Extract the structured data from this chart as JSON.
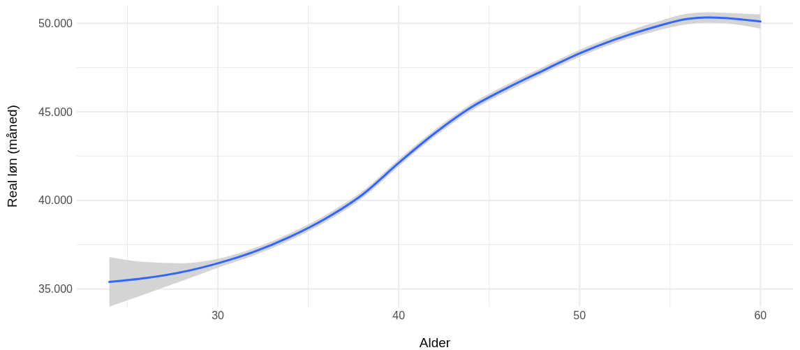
{
  "chart_data": {
    "type": "line",
    "xlabel": "Alder",
    "ylabel": "Real løn (måned)",
    "xlim": [
      22.2,
      61.8
    ],
    "ylim": [
      34000,
      51000
    ],
    "xticks": [
      {
        "value": 25,
        "label": null
      },
      30,
      {
        "value": 35,
        "label": null
      },
      40,
      {
        "value": 45,
        "label": null
      },
      50,
      {
        "value": 55,
        "label": null
      },
      60
    ],
    "yticks": [
      {
        "value": 35000,
        "label": "35.000"
      },
      {
        "value": 37500,
        "label": null
      },
      {
        "value": 40000,
        "label": "40.000"
      },
      {
        "value": 42500,
        "label": null
      },
      {
        "value": 45000,
        "label": "45.000"
      },
      {
        "value": 47500,
        "label": null
      },
      {
        "value": 50000,
        "label": "50.000"
      }
    ],
    "grid": true,
    "marker": "none",
    "line_style": "solid",
    "series": [
      {
        "color": "#3366ff",
        "x": [
          24,
          26,
          28,
          30,
          32,
          34,
          36,
          38,
          40,
          42,
          44,
          46,
          48,
          50,
          52,
          54,
          56,
          57,
          58,
          60
        ],
        "values": [
          35400,
          35620,
          35950,
          36450,
          37100,
          37950,
          39000,
          40330,
          42120,
          43800,
          45250,
          46350,
          47340,
          48300,
          49100,
          49750,
          50250,
          50330,
          50300,
          50100
        ],
        "lower": [
          34000,
          34720,
          35450,
          36200,
          36900,
          37750,
          38800,
          40130,
          41920,
          43600,
          45050,
          46150,
          47140,
          48100,
          48900,
          49500,
          49950,
          50030,
          50000,
          49700
        ],
        "upper": [
          36800,
          36520,
          36450,
          36700,
          37300,
          38150,
          39200,
          40530,
          42320,
          44000,
          45450,
          46550,
          47540,
          48500,
          49300,
          50000,
          50550,
          50630,
          50600,
          50500
        ]
      }
    ]
  }
}
